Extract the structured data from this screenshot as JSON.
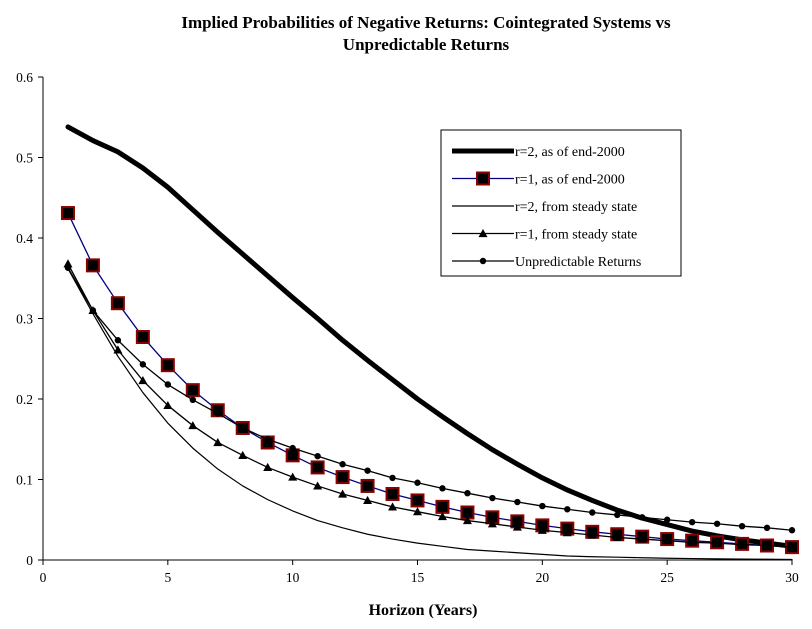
{
  "chart_data": {
    "type": "line",
    "title_lines": [
      "Implied Probabilities of Negative Returns: Cointegrated Systems vs",
      "Unpredictable Returns"
    ],
    "xlabel": "Horizon (Years)",
    "ylabel": "",
    "xlim": [
      0,
      30
    ],
    "ylim": [
      0,
      0.6
    ],
    "xticks": [
      "0",
      "5",
      "10",
      "15",
      "20",
      "25",
      "30"
    ],
    "yticks": [
      "0",
      "0.1",
      "0.2",
      "0.3",
      "0.4",
      "0.5",
      "0.6"
    ],
    "grid": false,
    "legend_position": "top-right",
    "x": [
      1,
      2,
      3,
      4,
      5,
      6,
      7,
      8,
      9,
      10,
      11,
      12,
      13,
      14,
      15,
      16,
      17,
      18,
      19,
      20,
      21,
      22,
      23,
      24,
      25,
      26,
      27,
      28,
      29,
      30
    ],
    "series": [
      {
        "name": "r=2, as of end-2000",
        "style": "thick",
        "color": "#000000",
        "values": [
          0.538,
          0.521,
          0.507,
          0.487,
          0.463,
          0.435,
          0.407,
          0.38,
          0.353,
          0.326,
          0.3,
          0.273,
          0.248,
          0.224,
          0.2,
          0.178,
          0.157,
          0.137,
          0.119,
          0.102,
          0.087,
          0.074,
          0.062,
          0.052,
          0.044,
          0.036,
          0.03,
          0.025,
          0.021,
          0.017
        ]
      },
      {
        "name": "r=1, as of end-2000",
        "style": "square",
        "color": "#000080",
        "marker_fill": "#000000",
        "marker_edge": "#8b0000",
        "values": [
          0.431,
          0.366,
          0.319,
          0.277,
          0.242,
          0.211,
          0.186,
          0.164,
          0.146,
          0.13,
          0.115,
          0.103,
          0.092,
          0.082,
          0.074,
          0.066,
          0.059,
          0.053,
          0.048,
          0.043,
          0.039,
          0.035,
          0.032,
          0.029,
          0.026,
          0.024,
          0.022,
          0.02,
          0.018,
          0.016
        ]
      },
      {
        "name": "r=2, from steady state",
        "style": "thin",
        "color": "#000000",
        "values": [
          0.362,
          0.306,
          0.253,
          0.208,
          0.17,
          0.139,
          0.113,
          0.092,
          0.075,
          0.061,
          0.049,
          0.04,
          0.032,
          0.026,
          0.021,
          0.017,
          0.013,
          0.011,
          0.009,
          0.007,
          0.005,
          0.004,
          0.0035,
          0.0028,
          0.0022,
          0.0018,
          0.0014,
          0.0011,
          0.0009,
          0.0007
        ]
      },
      {
        "name": "r=1, from steady state",
        "style": "triangle",
        "color": "#000000",
        "values": [
          0.368,
          0.31,
          0.261,
          0.223,
          0.192,
          0.167,
          0.146,
          0.13,
          0.115,
          0.103,
          0.092,
          0.082,
          0.074,
          0.066,
          0.06,
          0.054,
          0.049,
          0.045,
          0.041,
          0.037,
          0.034,
          0.031,
          0.028,
          0.026,
          0.024,
          0.022,
          0.021,
          0.019,
          0.018,
          0.016
        ]
      },
      {
        "name": "Unpredictable Returns",
        "style": "circle",
        "color": "#000000",
        "values": [
          0.363,
          0.31,
          0.273,
          0.243,
          0.218,
          0.199,
          0.182,
          0.164,
          0.15,
          0.139,
          0.129,
          0.119,
          0.111,
          0.102,
          0.096,
          0.089,
          0.083,
          0.077,
          0.072,
          0.067,
          0.063,
          0.059,
          0.056,
          0.053,
          0.05,
          0.047,
          0.045,
          0.042,
          0.04,
          0.037
        ]
      }
    ]
  }
}
